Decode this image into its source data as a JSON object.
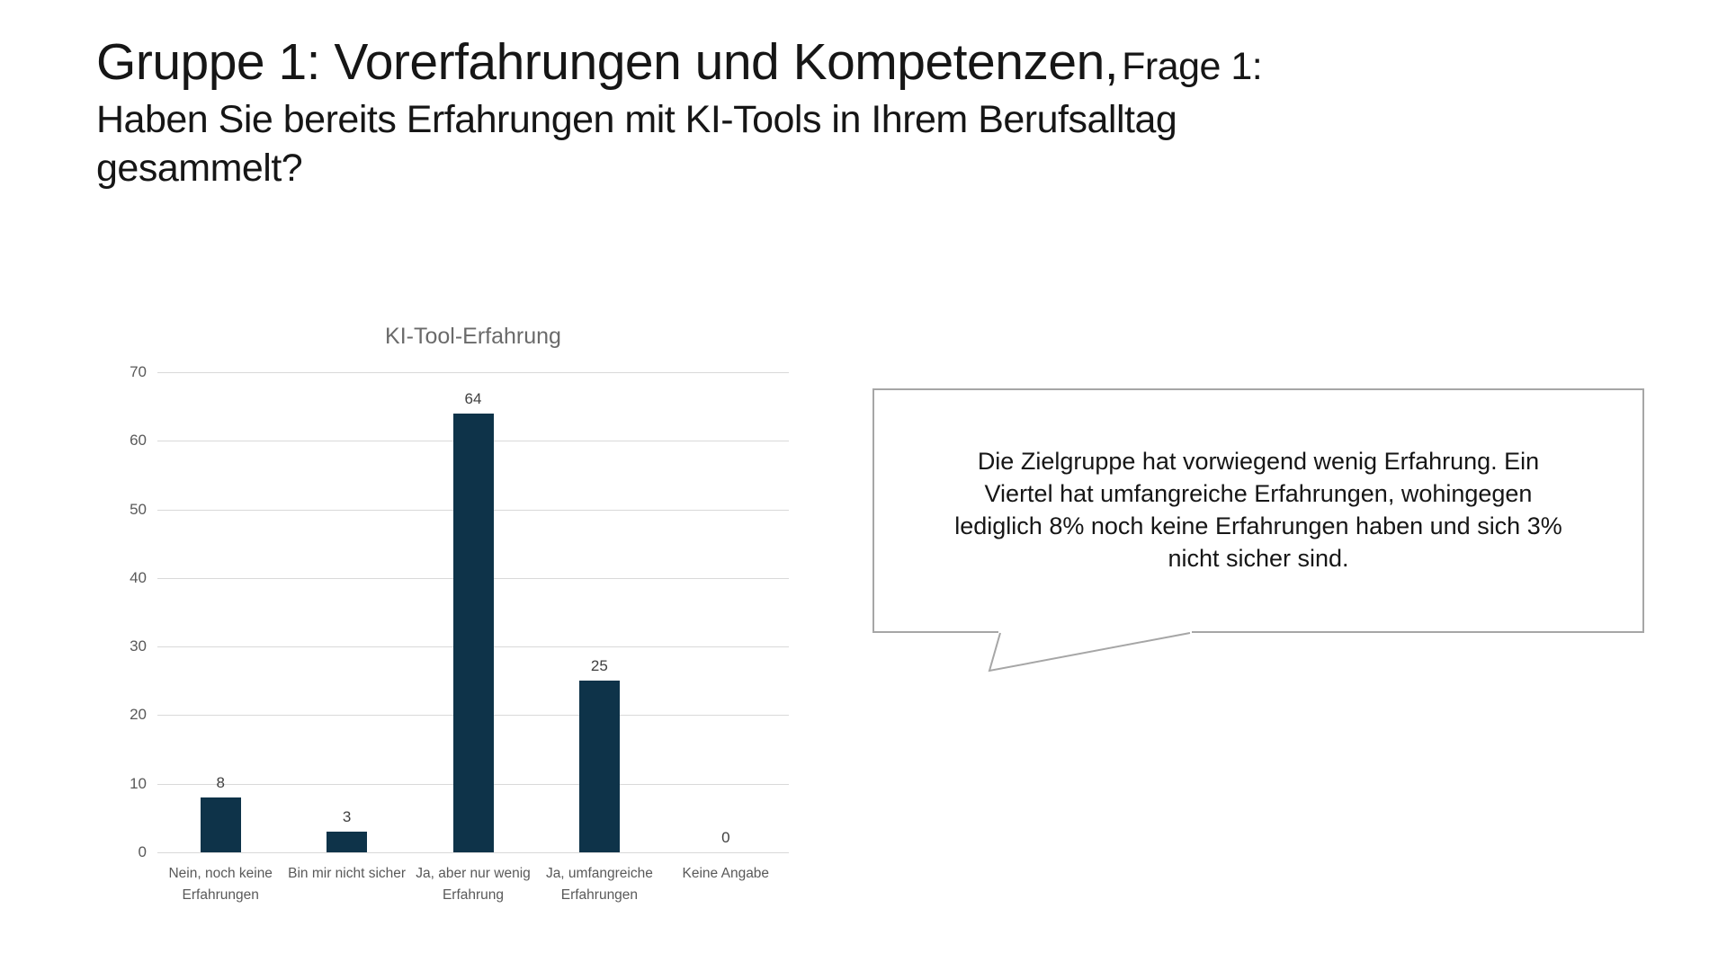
{
  "slide": {
    "title_main": "Gruppe 1: Vorerfahrungen und Kompetenzen,",
    "title_frage": "Frage 1:",
    "title_question": "Haben Sie bereits Erfahrungen mit KI-Tools in Ihrem Berufsalltag gesammelt?"
  },
  "chart_data": {
    "type": "bar",
    "title": "KI-Tool-Erfahrung",
    "categories": [
      "Nein, noch keine Erfahrungen",
      "Bin mir nicht sicher",
      "Ja, aber nur wenig Erfahrung",
      "Ja, umfangreiche Erfahrungen",
      "Keine Angabe"
    ],
    "values": [
      8,
      3,
      64,
      25,
      0
    ],
    "xlabel": "",
    "ylabel": "",
    "ylim": [
      0,
      70
    ],
    "yticks": [
      0,
      10,
      20,
      30,
      40,
      50,
      60,
      70
    ],
    "grid": true,
    "legend": "none",
    "bar_color": "#0e3349",
    "gridline_color": "#d9d9d9",
    "label_color": "#595959",
    "value_label_color": "#404040"
  },
  "callout": {
    "text": "Die Zielgruppe hat vorwiegend wenig Erfahrung. Ein Viertel hat umfangreiche Erfahrungen, wohingegen lediglich 8% noch keine Erfahrungen haben und sich 3% nicht sicher sind."
  }
}
